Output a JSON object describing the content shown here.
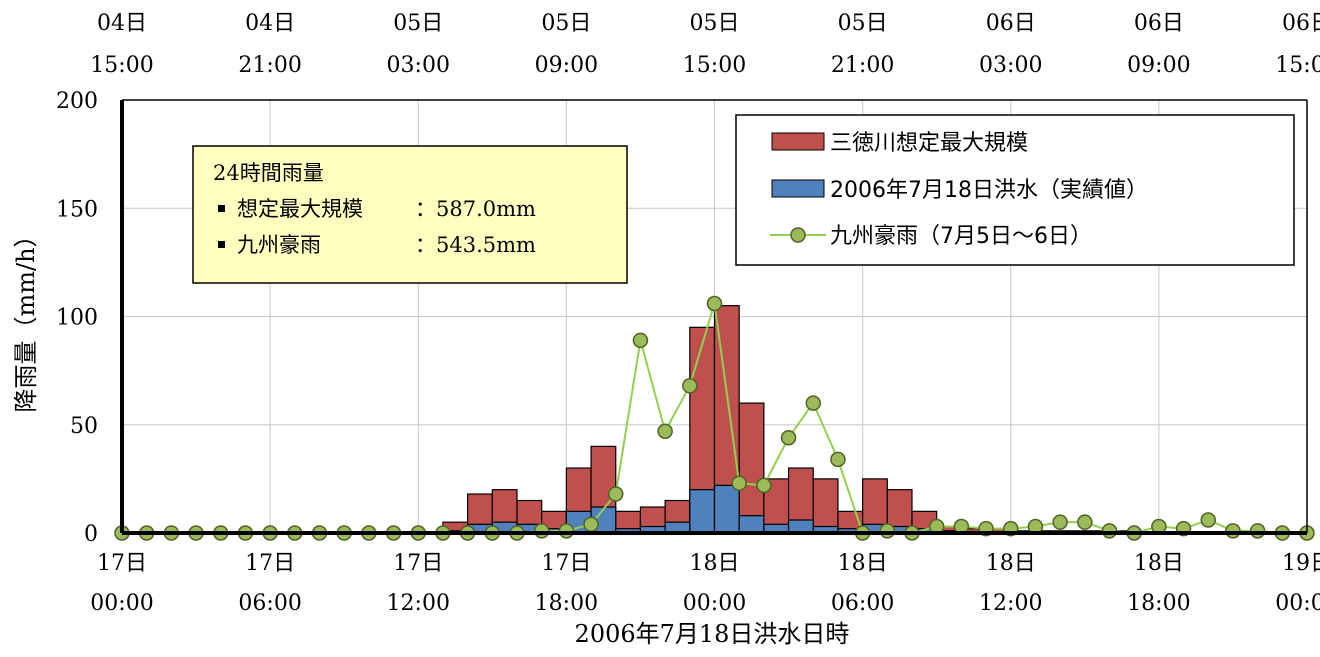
{
  "chart_data": {
    "type": "bar",
    "xlabel": "2006年7月18日洪水日時",
    "ylabel": "降雨量（mm/h）",
    "ylim": [
      0,
      200
    ],
    "yticks": [
      0,
      50,
      100,
      150,
      200
    ],
    "grid": true,
    "legend_position": "top-right",
    "x_hours": {
      "min": 0,
      "max": 48
    },
    "bottom_ticks": [
      {
        "line1": "17日",
        "line2": "00:00"
      },
      {
        "line1": "17日",
        "line2": "06:00"
      },
      {
        "line1": "17日",
        "line2": "12:00"
      },
      {
        "line1": "17日",
        "line2": "18:00"
      },
      {
        "line1": "18日",
        "line2": "00:00"
      },
      {
        "line1": "18日",
        "line2": "06:00"
      },
      {
        "line1": "18日",
        "line2": "12:00"
      },
      {
        "line1": "18日",
        "line2": "18:00"
      },
      {
        "line1": "19日",
        "line2": "00:00"
      }
    ],
    "top_ticks": [
      {
        "line1": "04日",
        "line2": "15:00"
      },
      {
        "line1": "04日",
        "line2": "21:00"
      },
      {
        "line1": "05日",
        "line2": "03:00"
      },
      {
        "line1": "05日",
        "line2": "09:00"
      },
      {
        "line1": "05日",
        "line2": "15:00"
      },
      {
        "line1": "05日",
        "line2": "21:00"
      },
      {
        "line1": "06日",
        "line2": "03:00"
      },
      {
        "line1": "06日",
        "line2": "09:00"
      },
      {
        "line1": "06日",
        "line2": "15:00"
      }
    ],
    "series": [
      {
        "name": "三徳川想定最大規模",
        "type": "bar",
        "color": "#c0504d",
        "values": [
          0,
          0,
          0,
          0,
          0,
          0,
          0,
          0,
          0,
          0,
          0,
          0,
          0,
          5,
          18,
          20,
          15,
          10,
          30,
          40,
          10,
          12,
          15,
          95,
          105,
          60,
          25,
          30,
          25,
          10,
          25,
          20,
          10,
          3,
          2,
          2,
          1,
          1,
          1,
          1,
          1,
          0,
          0,
          0,
          0,
          0,
          0,
          0
        ]
      },
      {
        "name": "2006年7月18日洪水（実績値）",
        "type": "bar",
        "color": "#4f81bd",
        "values": [
          0,
          0,
          0,
          0,
          0,
          0,
          0,
          0,
          0,
          0,
          0,
          0,
          0,
          1,
          4,
          5,
          4,
          2,
          10,
          12,
          2,
          3,
          5,
          20,
          22,
          8,
          4,
          6,
          3,
          2,
          4,
          3,
          2,
          1,
          0,
          0,
          0,
          0,
          0,
          0,
          0,
          0,
          0,
          0,
          0,
          0,
          0,
          0
        ]
      },
      {
        "name": "九州豪雨（7月5日〜6日）",
        "type": "line",
        "color": "#92d050",
        "x": [
          0,
          1,
          2,
          3,
          4,
          5,
          6,
          7,
          8,
          9,
          10,
          11,
          12,
          13,
          14,
          15,
          16,
          17,
          18,
          19,
          20,
          21,
          22,
          23,
          24,
          25,
          26,
          27,
          28,
          29,
          30,
          31,
          32,
          33,
          34,
          35,
          36,
          37,
          38,
          39,
          40,
          41,
          42,
          43,
          44,
          45,
          46,
          47,
          48
        ],
        "values": [
          0,
          0,
          0,
          0,
          0,
          0,
          0,
          0,
          0,
          0,
          0,
          0,
          0,
          0,
          0,
          0,
          0,
          1,
          1,
          4,
          18,
          89,
          47,
          68,
          106,
          23,
          22,
          44,
          60,
          34,
          0,
          1,
          0,
          3,
          3,
          2,
          2,
          3,
          5,
          5,
          1,
          0,
          3,
          2,
          6,
          1,
          1,
          0,
          0
        ]
      }
    ]
  },
  "info_box": {
    "title": "24時間雨量",
    "rows": [
      {
        "label": "想定最大規模",
        "value": "：587.0mm"
      },
      {
        "label": "九州豪雨",
        "value": "：543.5mm"
      }
    ]
  },
  "colors": {
    "info_box_fill": "#ffffc0",
    "grid": "#c8c8c8",
    "marker_fill": "#9bbb59",
    "marker_stroke": "#4f6228"
  }
}
